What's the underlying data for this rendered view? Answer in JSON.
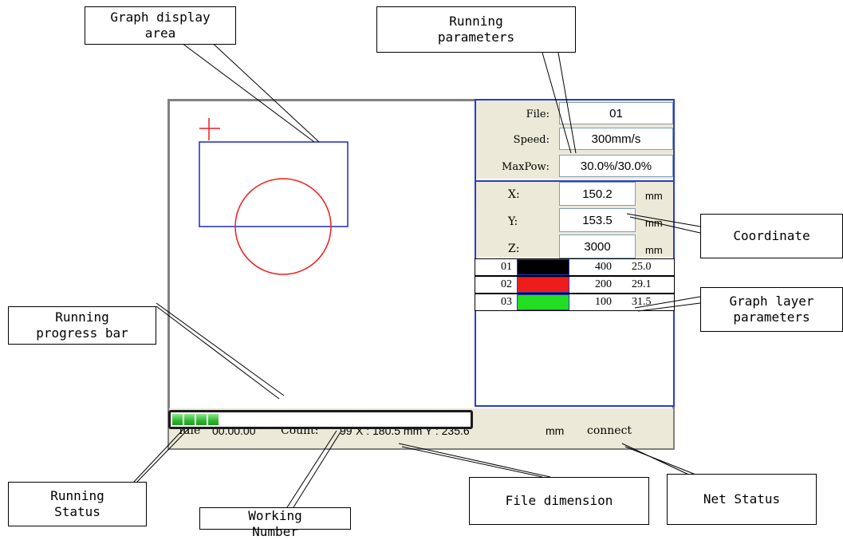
{
  "callouts": {
    "graph_display_area": "Graph display\narea",
    "running_parameters": "Running\nparameters",
    "coordinate": "Coordinate",
    "graph_layer_parameters": "Graph layer\nparameters",
    "running_progress_bar": "Running\nprogress bar",
    "running_status": "Running\nStatus",
    "working_number": "Working\nNumber",
    "file_dimension": "File dimension",
    "net_status": "Net Status"
  },
  "params": {
    "file_label": "File:",
    "file_value": "01",
    "speed_label": "Speed:",
    "speed_value": "300mm/s",
    "maxpow_label": "MaxPow:",
    "maxpow_value": "30.0%/30.0%"
  },
  "coords": {
    "x_label": "X:",
    "x_value": "150.2",
    "y_label": "Y:",
    "y_value": "153.5",
    "z_label": "Z:",
    "z_value": "3000",
    "unit": "mm"
  },
  "layers": [
    {
      "num": "01",
      "color": "#000000",
      "speed": "400",
      "power": "25.0"
    },
    {
      "num": "02",
      "color": "#ee1c1c",
      "speed": "200",
      "power": "29.1"
    },
    {
      "num": "03",
      "color": "#22dd22",
      "speed": "100",
      "power": "31.5"
    }
  ],
  "progress": {
    "segments_filled": 4,
    "fraction": 0.17
  },
  "status": {
    "state": "Idle",
    "time": "00.00.00",
    "count_label": "Count:",
    "count_value": "99",
    "dims": "X : 180.5 mm Y : 235.6",
    "unit": "mm",
    "net": "connect"
  },
  "colors": {
    "frame_blue": "#2a3cc8",
    "graphic_red": "#ee1c1c",
    "panel_bg": "#ece9d8"
  }
}
